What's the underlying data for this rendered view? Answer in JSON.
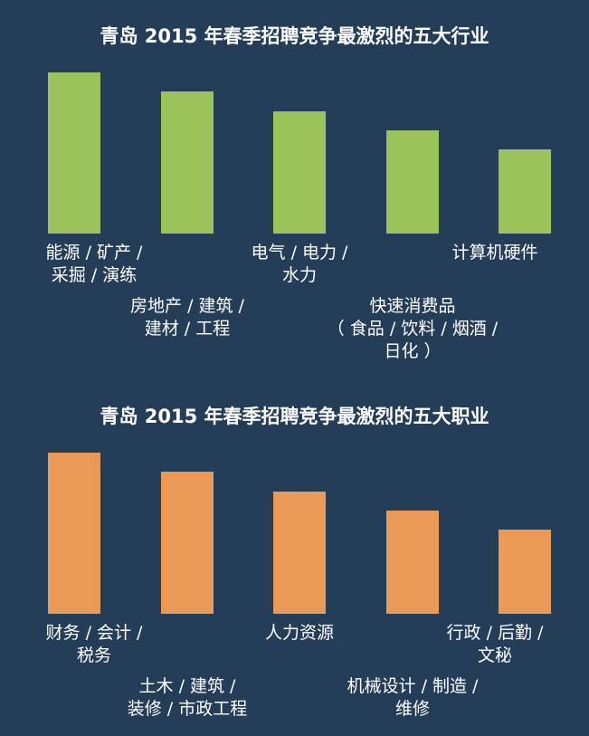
{
  "chart_data": [
    {
      "type": "bar",
      "title": "青岛 2015 年春季招聘竞争最激烈的五大行业",
      "color": "#9bc35a",
      "categories": [
        "能源 / 矿产 /\n采掘 / 演练",
        "房地产 / 建筑 /\n建材 / 工程",
        "电气 / 电力 /\n水力",
        "快速消费品\n（ 食品 / 饮料 / 烟酒 / 日化 ）",
        "计算机硬件"
      ],
      "values": [
        5,
        4.4,
        3.8,
        3.2,
        2.6
      ],
      "ylim": [
        0,
        5
      ],
      "xlabel": "",
      "ylabel": ""
    },
    {
      "type": "bar",
      "title": "青岛 2015 年春季招聘竞争最激烈的五大职业",
      "color": "#eb9a55",
      "categories": [
        "财务 / 会计 /\n税务",
        "土木 / 建筑 /\n装修 / 市政工程",
        "人力资源",
        "机械设计 / 制造 /\n维修",
        "行政 / 后勤 /\n文秘"
      ],
      "values": [
        5,
        4.4,
        3.8,
        3.2,
        2.6
      ],
      "ylim": [
        0,
        5
      ],
      "xlabel": "",
      "ylabel": ""
    }
  ]
}
